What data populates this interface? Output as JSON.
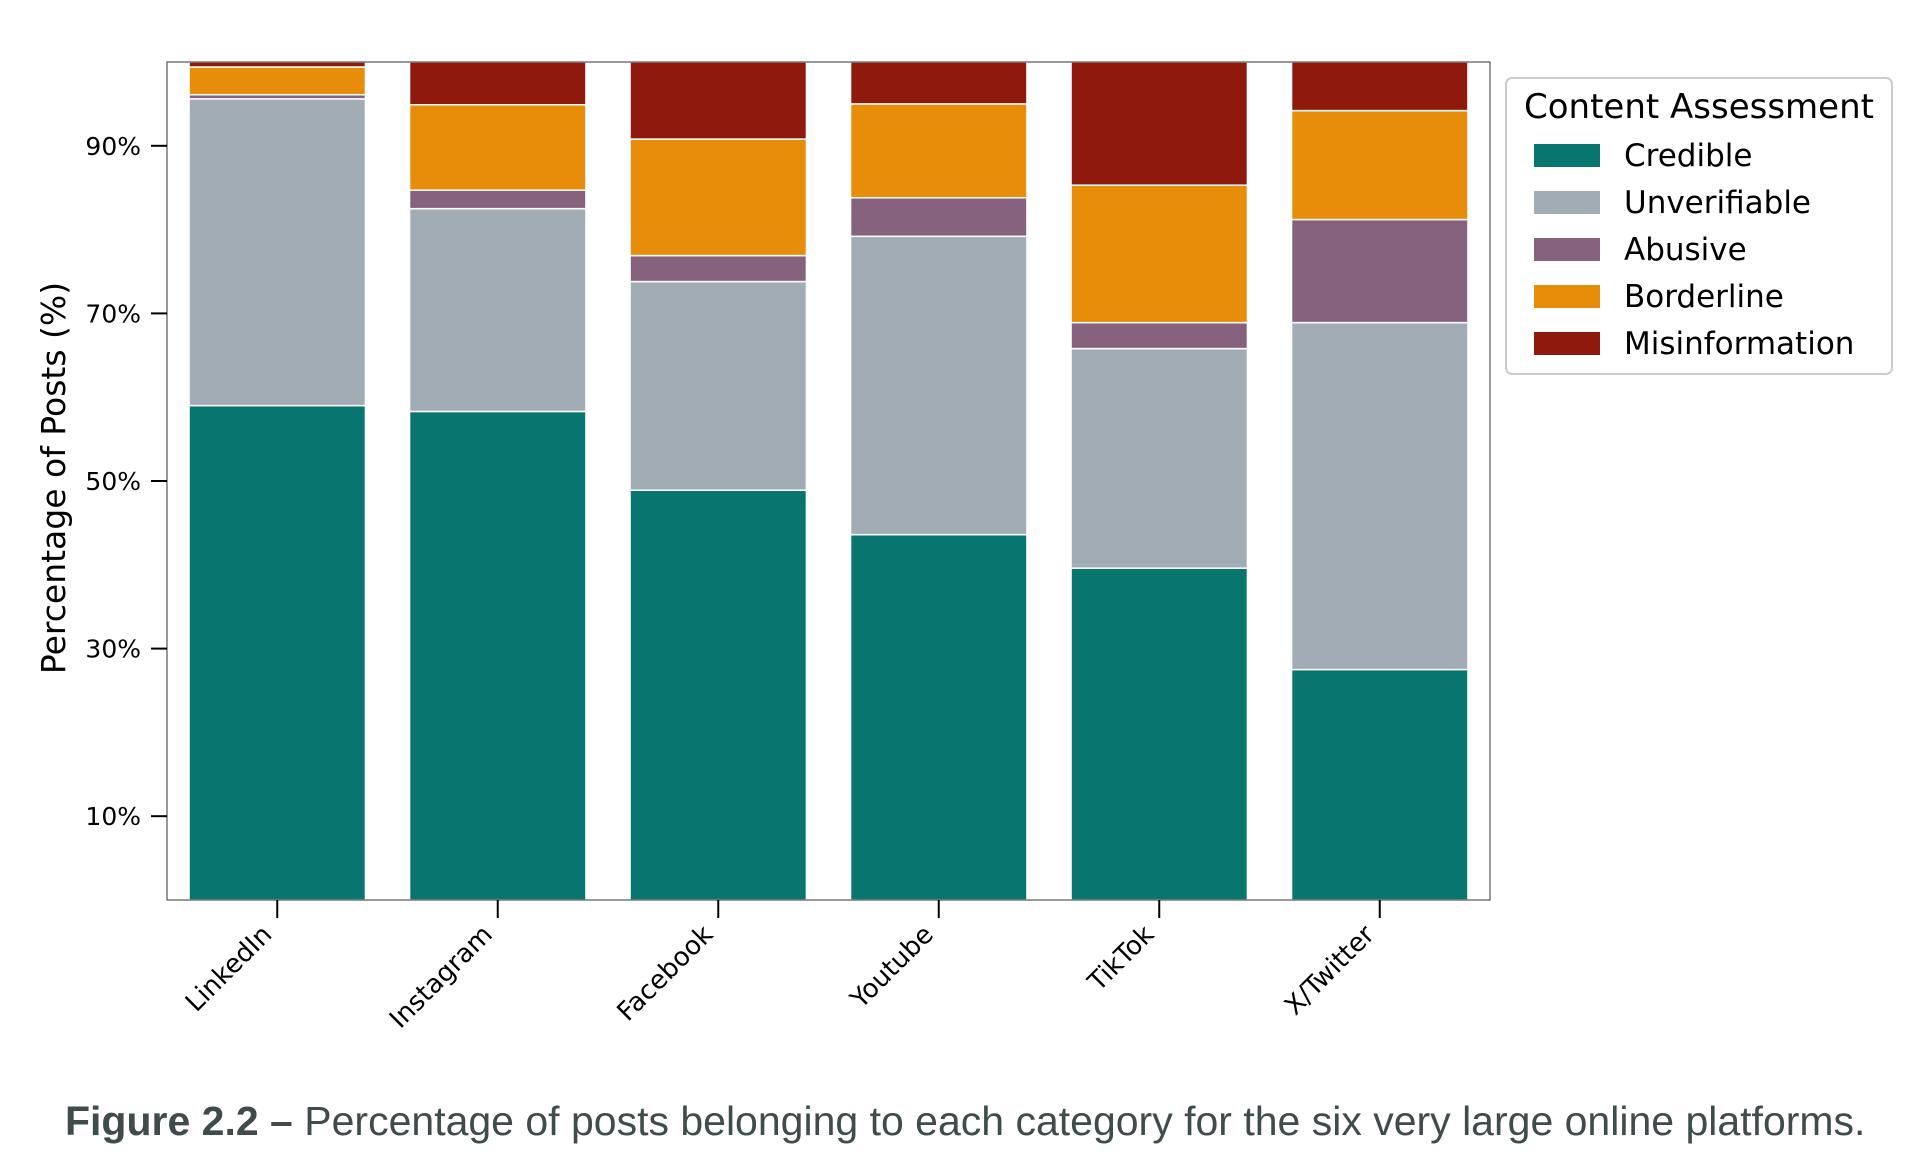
{
  "chart_data": {
    "type": "bar",
    "stacked": true,
    "categories": [
      "LinkedIn",
      "Instagram",
      "Facebook",
      "Youtube",
      "TikTok",
      "X/Twitter"
    ],
    "ylabel": "Percentage of Posts (%)",
    "xlabel": "",
    "ylim": [
      0,
      100
    ],
    "yticks": [
      10,
      30,
      50,
      70,
      90
    ],
    "ytick_labels": [
      "10%",
      "30%",
      "50%",
      "70%",
      "90%"
    ],
    "grid": false,
    "legend": {
      "title": "Content Assessment",
      "placement": "outside-top-right"
    },
    "series": [
      {
        "name": "Credible",
        "color": "#08756f",
        "values": [
          59.0,
          58.3,
          48.9,
          43.6,
          39.6,
          27.5
        ]
      },
      {
        "name": "Unverifiable",
        "color": "#a2acb4",
        "values": [
          36.6,
          24.2,
          24.9,
          35.6,
          26.2,
          41.4
        ]
      },
      {
        "name": "Abusive",
        "color": "#87627f",
        "values": [
          0.5,
          2.2,
          3.1,
          4.6,
          3.1,
          12.3
        ]
      },
      {
        "name": "Borderline",
        "color": "#e78d0a",
        "values": [
          3.3,
          10.2,
          13.9,
          11.2,
          16.4,
          13.0
        ]
      },
      {
        "name": "Misinformation",
        "color": "#8f190c",
        "values": [
          0.6,
          5.1,
          9.2,
          5.0,
          14.7,
          5.8
        ]
      }
    ]
  },
  "caption": {
    "label": "Figure 2.2 –",
    "text": "Percentage of posts belonging to each category for the six very large online platforms."
  }
}
